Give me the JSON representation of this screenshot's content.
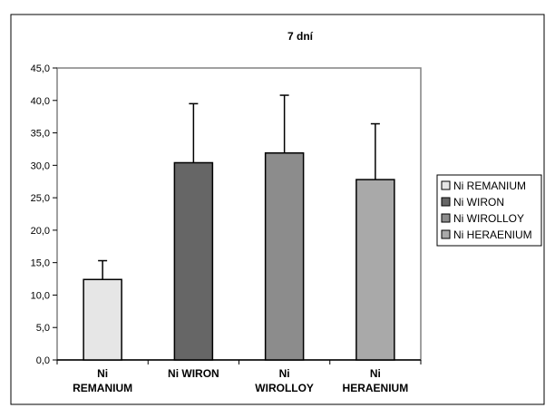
{
  "chart_data": {
    "type": "bar",
    "title": "7 dní",
    "xlabel": "",
    "ylabel": "",
    "ylim": [
      0,
      45
    ],
    "ytick_step": 5,
    "ytick_labels": [
      "0,0",
      "5,0",
      "10,0",
      "15,0",
      "20,0",
      "25,0",
      "30,0",
      "35,0",
      "40,0",
      "45,0"
    ],
    "grid": false,
    "legend_position": "right",
    "categories": [
      [
        "Ni",
        "REMANIUM"
      ],
      [
        "Ni WIRON"
      ],
      [
        "Ni",
        "WIROLLOY"
      ],
      [
        "Ni",
        "HERAENIUM"
      ]
    ],
    "series": [
      {
        "name": "Ni REMANIUM",
        "value": 12.4,
        "error": 2.9,
        "color": "#e6e6e6"
      },
      {
        "name": "Ni WIRON",
        "value": 30.4,
        "error": 9.1,
        "color": "#666666"
      },
      {
        "name": "Ni WIROLLOY",
        "value": 31.9,
        "error": 8.9,
        "color": "#8c8c8c"
      },
      {
        "name": "Ni HERAENIUM",
        "value": 27.8,
        "error": 8.6,
        "color": "#a9a9a9"
      }
    ]
  }
}
